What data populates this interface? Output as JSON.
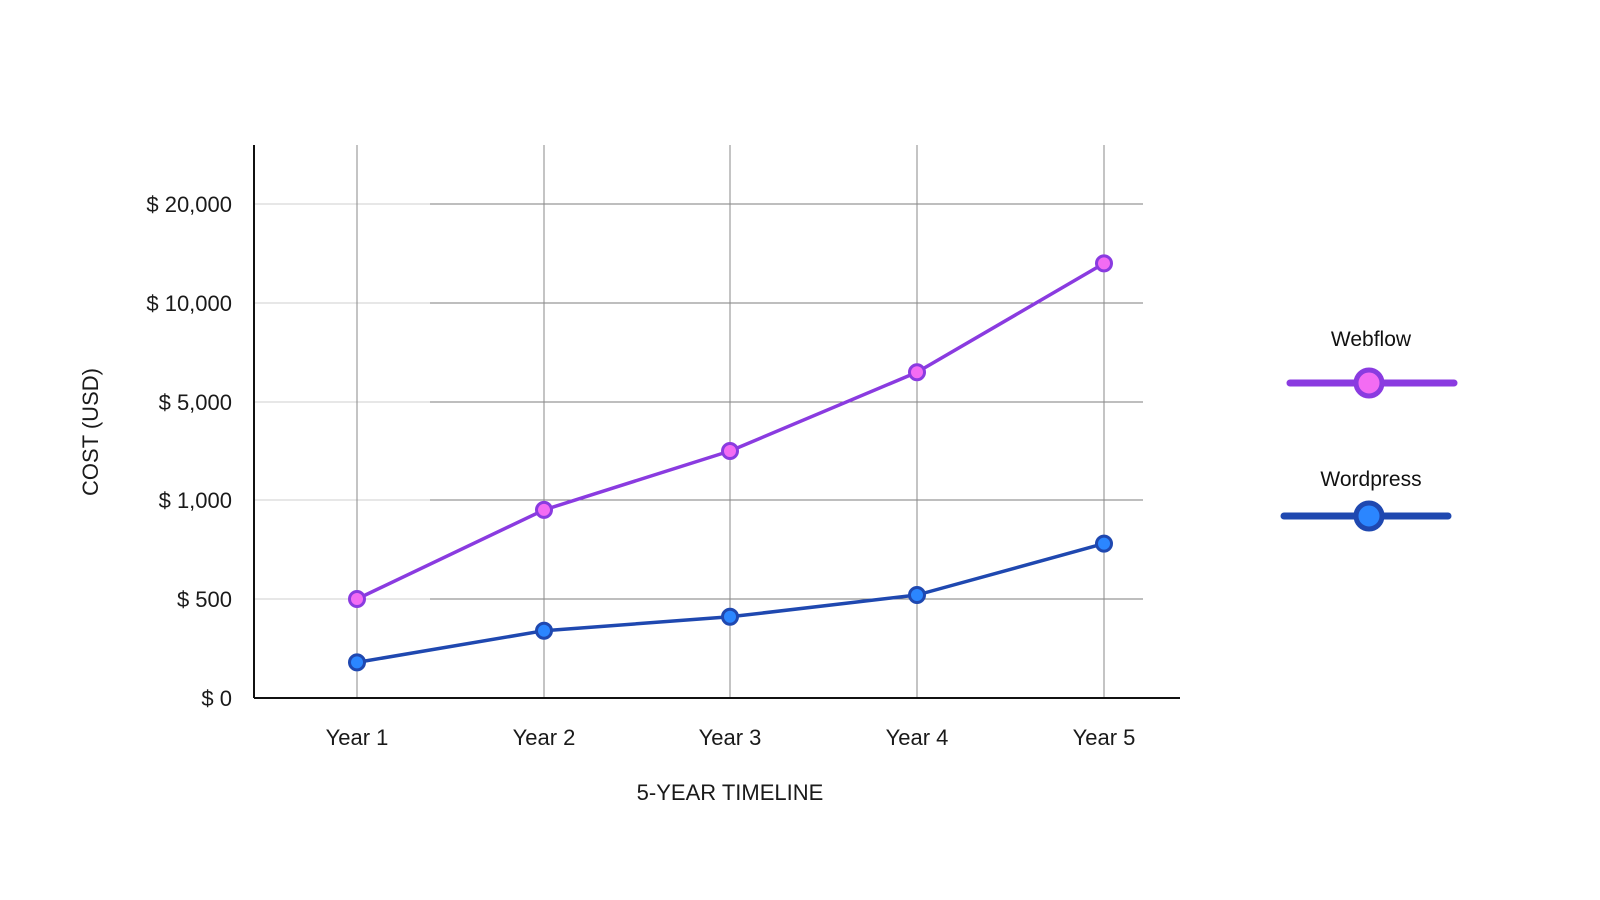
{
  "chart_data": {
    "type": "line",
    "title": "",
    "xlabel": "5-YEAR TIMELINE",
    "ylabel": "COST (USD)",
    "categories": [
      "Year 1",
      "Year 2",
      "Year 3",
      "Year 4",
      "Year 5"
    ],
    "y_ticks": [
      {
        "value": 0,
        "label": "$ 0"
      },
      {
        "value": 500,
        "label": "$ 500"
      },
      {
        "value": 1000,
        "label": "$ 1,000"
      },
      {
        "value": 5000,
        "label": "$ 5,000"
      },
      {
        "value": 10000,
        "label": "$ 10,000"
      },
      {
        "value": 20000,
        "label": "$ 20,000"
      }
    ],
    "y_scale": "non-uniform (ticks evenly spaced)",
    "grid": true,
    "legend_position": "right",
    "series": [
      {
        "name": "Webflow",
        "color": "#8a3be0",
        "marker_fill": "#f36cf3",
        "values": [
          500,
          950,
          3000,
          6500,
          14000
        ]
      },
      {
        "name": "Wordpress",
        "color": "#1f48b0",
        "marker_fill": "#2b86ff",
        "values": [
          180,
          340,
          410,
          520,
          780
        ]
      }
    ]
  }
}
